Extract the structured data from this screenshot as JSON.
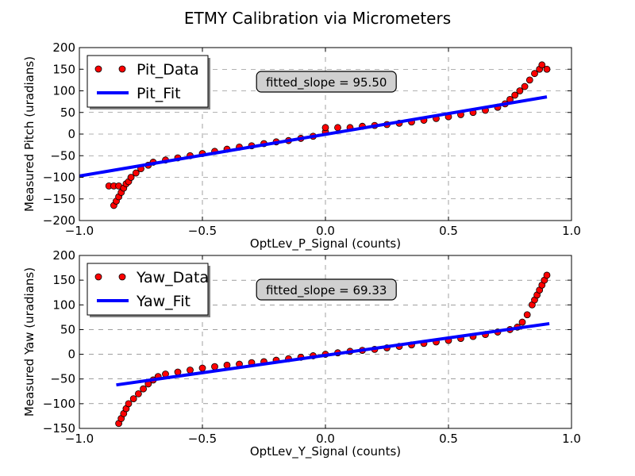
{
  "title": "ETMY Calibration via Micrometers",
  "chart_data": [
    {
      "type": "scatter",
      "xlabel": "OptLev_P_Signal (counts)",
      "ylabel": "Measured Pitch (uradians)",
      "xlim": [
        -1.0,
        1.0
      ],
      "ylim": [
        -200,
        200
      ],
      "x_ticks": [
        -1.0,
        -0.5,
        0.0,
        0.5,
        1.0
      ],
      "x_tick_labels": [
        "−1.0",
        "−0.5",
        "0.0",
        "0.5",
        "1.0"
      ],
      "y_ticks": [
        -200,
        -150,
        -100,
        -50,
        0,
        50,
        100,
        150,
        200
      ],
      "y_tick_labels": [
        "−200",
        "−150",
        "−100",
        "−50",
        "0",
        "50",
        "100",
        "150",
        "200"
      ],
      "grid": true,
      "grid_style": "dashed",
      "legend_position": "upper-left",
      "annotation": "fitted_slope = 95.50",
      "series": [
        {
          "name": "Pit_Data",
          "kind": "markers",
          "color": "#ff0000",
          "points": [
            [
              -0.88,
              -120
            ],
            [
              -0.86,
              -120
            ],
            [
              -0.84,
              -120
            ],
            [
              -0.86,
              -165
            ],
            [
              -0.85,
              -155
            ],
            [
              -0.84,
              -145
            ],
            [
              -0.83,
              -135
            ],
            [
              -0.82,
              -125
            ],
            [
              -0.81,
              -115
            ],
            [
              -0.8,
              -110
            ],
            [
              -0.79,
              -100
            ],
            [
              -0.77,
              -90
            ],
            [
              -0.75,
              -80
            ],
            [
              -0.72,
              -72
            ],
            [
              -0.7,
              -65
            ],
            [
              -0.65,
              -60
            ],
            [
              -0.6,
              -55
            ],
            [
              -0.55,
              -50
            ],
            [
              -0.5,
              -45
            ],
            [
              -0.45,
              -40
            ],
            [
              -0.4,
              -35
            ],
            [
              -0.35,
              -30
            ],
            [
              -0.3,
              -27
            ],
            [
              -0.25,
              -22
            ],
            [
              -0.2,
              -18
            ],
            [
              -0.15,
              -15
            ],
            [
              -0.1,
              -10
            ],
            [
              -0.05,
              -5
            ],
            [
              0.0,
              5
            ],
            [
              0.0,
              15
            ],
            [
              0.05,
              15
            ],
            [
              0.1,
              15
            ],
            [
              0.15,
              18
            ],
            [
              0.2,
              20
            ],
            [
              0.25,
              22
            ],
            [
              0.3,
              25
            ],
            [
              0.35,
              28
            ],
            [
              0.4,
              32
            ],
            [
              0.45,
              36
            ],
            [
              0.5,
              40
            ],
            [
              0.55,
              45
            ],
            [
              0.6,
              50
            ],
            [
              0.65,
              55
            ],
            [
              0.7,
              62
            ],
            [
              0.73,
              70
            ],
            [
              0.75,
              80
            ],
            [
              0.77,
              90
            ],
            [
              0.79,
              100
            ],
            [
              0.81,
              110
            ],
            [
              0.83,
              125
            ],
            [
              0.85,
              140
            ],
            [
              0.87,
              150
            ],
            [
              0.88,
              160
            ],
            [
              0.9,
              150
            ]
          ]
        },
        {
          "name": "Pit_Fit",
          "kind": "line",
          "color": "#0000ff",
          "points": [
            [
              -1.0,
              -97
            ],
            [
              0.9,
              86
            ]
          ]
        }
      ]
    },
    {
      "type": "scatter",
      "xlabel": "OptLev_Y_Signal (counts)",
      "ylabel": "Measured Yaw (uradians)",
      "xlim": [
        -1.0,
        1.0
      ],
      "ylim": [
        -150,
        200
      ],
      "x_ticks": [
        -1.0,
        -0.5,
        0.0,
        0.5,
        1.0
      ],
      "x_tick_labels": [
        "−1.0",
        "−0.5",
        "0.0",
        "0.5",
        "1.0"
      ],
      "y_ticks": [
        -150,
        -100,
        -50,
        0,
        50,
        100,
        150,
        200
      ],
      "y_tick_labels": [
        "−150",
        "−100",
        "−50",
        "0",
        "50",
        "100",
        "150",
        "200"
      ],
      "grid": true,
      "grid_style": "dashed",
      "legend_position": "upper-left",
      "annotation": "fitted_slope = 69.33",
      "series": [
        {
          "name": "Yaw_Data",
          "kind": "markers",
          "color": "#ff0000",
          "points": [
            [
              -0.84,
              -140
            ],
            [
              -0.83,
              -130
            ],
            [
              -0.82,
              -120
            ],
            [
              -0.81,
              -110
            ],
            [
              -0.8,
              -100
            ],
            [
              -0.78,
              -90
            ],
            [
              -0.76,
              -80
            ],
            [
              -0.74,
              -70
            ],
            [
              -0.72,
              -60
            ],
            [
              -0.7,
              -52
            ],
            [
              -0.68,
              -45
            ],
            [
              -0.65,
              -40
            ],
            [
              -0.6,
              -36
            ],
            [
              -0.55,
              -32
            ],
            [
              -0.5,
              -28
            ],
            [
              -0.45,
              -25
            ],
            [
              -0.4,
              -22
            ],
            [
              -0.35,
              -20
            ],
            [
              -0.3,
              -17
            ],
            [
              -0.25,
              -15
            ],
            [
              -0.2,
              -12
            ],
            [
              -0.15,
              -9
            ],
            [
              -0.1,
              -6
            ],
            [
              -0.05,
              -3
            ],
            [
              0.0,
              0
            ],
            [
              0.05,
              3
            ],
            [
              0.1,
              6
            ],
            [
              0.15,
              8
            ],
            [
              0.2,
              10
            ],
            [
              0.25,
              13
            ],
            [
              0.3,
              16
            ],
            [
              0.35,
              19
            ],
            [
              0.4,
              22
            ],
            [
              0.45,
              25
            ],
            [
              0.5,
              28
            ],
            [
              0.55,
              32
            ],
            [
              0.6,
              36
            ],
            [
              0.65,
              40
            ],
            [
              0.7,
              45
            ],
            [
              0.75,
              50
            ],
            [
              0.78,
              55
            ],
            [
              0.8,
              65
            ],
            [
              0.82,
              80
            ],
            [
              0.84,
              100
            ],
            [
              0.85,
              110
            ],
            [
              0.86,
              120
            ],
            [
              0.87,
              130
            ],
            [
              0.88,
              140
            ],
            [
              0.89,
              150
            ],
            [
              0.9,
              160
            ]
          ]
        },
        {
          "name": "Yaw_Fit",
          "kind": "line",
          "color": "#0000ff",
          "points": [
            [
              -0.85,
              -62
            ],
            [
              0.91,
              62
            ]
          ]
        }
      ]
    }
  ]
}
